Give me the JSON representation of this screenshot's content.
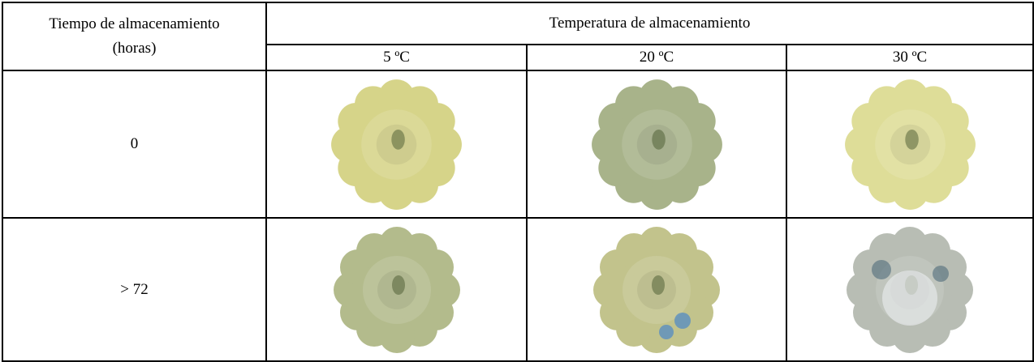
{
  "table": {
    "row_header": "Tiempo de almacenamiento (horas)",
    "group_header": "Temperatura de almacenamiento",
    "columns": [
      "5 ºC",
      "20 ºC",
      "30 ºC"
    ],
    "rows": [
      {
        "label": "0"
      },
      {
        "label": "> 72"
      }
    ]
  }
}
